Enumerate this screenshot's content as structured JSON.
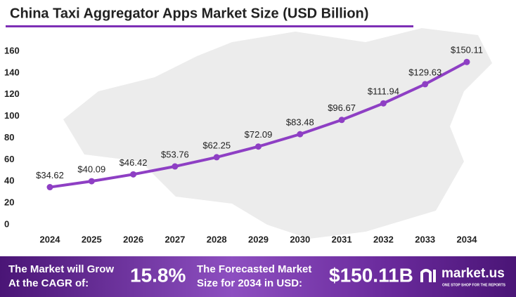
{
  "chart_data": {
    "type": "line",
    "title": "China Taxi Aggregator  Apps Market Size (USD Billion)",
    "categories": [
      "2024",
      "2025",
      "2026",
      "2027",
      "2028",
      "2029",
      "2030",
      "2031",
      "2032",
      "2033",
      "2034"
    ],
    "series": [
      {
        "name": "Market Size",
        "color": "#8e3fc4",
        "values": [
          34.62,
          40.09,
          46.42,
          53.76,
          62.25,
          72.09,
          83.48,
          96.67,
          111.94,
          129.63,
          150.11
        ],
        "value_labels": [
          "$34.62",
          "$40.09",
          "$46.42",
          "$53.76",
          "$62.25",
          "$72.09",
          "$83.48",
          "$96.67",
          "$111.94",
          "$129.63",
          "$150.11"
        ]
      }
    ],
    "ylim": [
      0,
      160
    ],
    "yticks": [
      0,
      20,
      40,
      60,
      80,
      100,
      120,
      140,
      160
    ],
    "grid": false
  },
  "footer": {
    "cagr_lines": [
      "The Market will Grow",
      "At the CAGR of:"
    ],
    "cagr": "15.8%",
    "forecast_lines": [
      "The Forecasted Market",
      "Size for 2034 in USD:"
    ],
    "forecast": "$150.11B",
    "brand": "market.us",
    "tagline": "ONE STOP SHOP FOR THE REPORTS"
  }
}
